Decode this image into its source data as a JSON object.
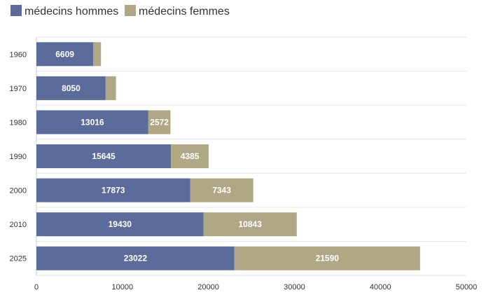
{
  "chart_data": {
    "type": "bar",
    "orientation": "horizontal",
    "stacked": true,
    "categories": [
      "1960",
      "1970",
      "1980",
      "1990",
      "2000",
      "2010",
      "2025"
    ],
    "series": [
      {
        "name": "médecins hommes",
        "color": "#5b6b9a",
        "values": [
          6609,
          8050,
          13016,
          15645,
          17873,
          19430,
          23022
        ],
        "labels": [
          "6609",
          "8050",
          "13016",
          "15645",
          "17873",
          "19430",
          "23022"
        ]
      },
      {
        "name": "médecins femmes",
        "color": "#b0a784",
        "values": [
          900,
          1200,
          2572,
          4385,
          7343,
          10843,
          21590
        ],
        "labels": [
          "",
          "",
          "2572",
          "4385",
          "7343",
          "10843",
          "21590"
        ]
      }
    ],
    "xlim": [
      0,
      50000
    ],
    "xticks": [
      "0",
      "10000",
      "20000",
      "30000",
      "40000",
      "50000"
    ],
    "grid": true,
    "legend_position": "top-left"
  }
}
